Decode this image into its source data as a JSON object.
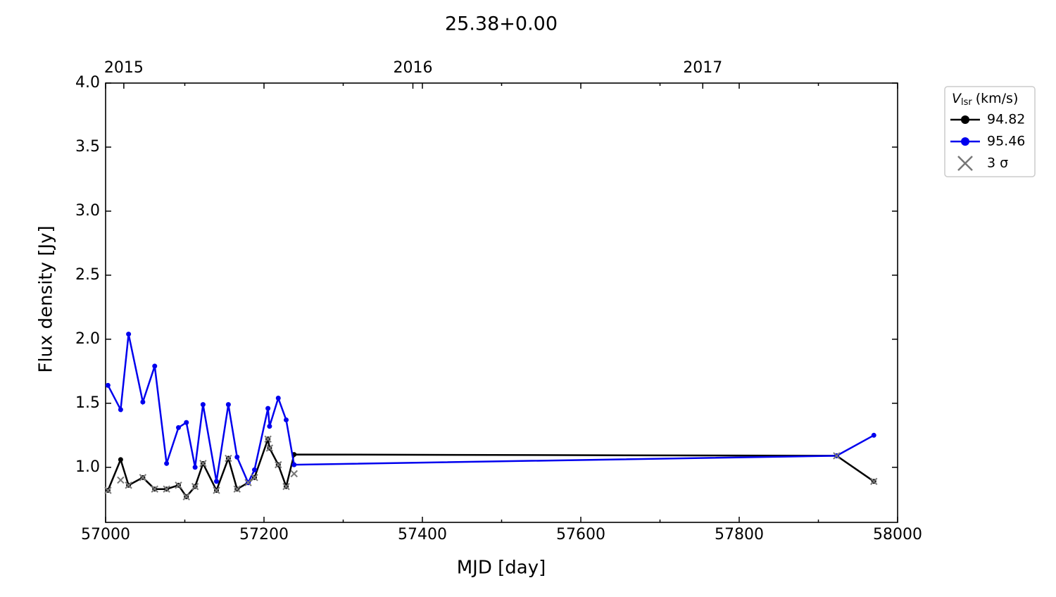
{
  "chart_data": {
    "type": "line",
    "title": "25.38+0.00",
    "xlabel": "MJD [day]",
    "ylabel": "Flux density [Jy]",
    "xlim": [
      57000,
      58000
    ],
    "xticks": [
      57000,
      57200,
      57400,
      57600,
      57800,
      58000
    ],
    "x_minor_ticks": [
      57100,
      57300,
      57500,
      57700,
      57900
    ],
    "x2ticks": [
      {
        "value": 57023,
        "label": "2015"
      },
      {
        "value": 57388,
        "label": "2016"
      },
      {
        "value": 57754,
        "label": "2017"
      }
    ],
    "ylim": [
      0.57,
      4.0
    ],
    "yticks": [
      {
        "value": 1.0,
        "label": "1.0"
      },
      1.5,
      {
        "value": 2.0,
        "label": "2.0"
      },
      2.5,
      {
        "value": 3.0,
        "label": "3.0"
      },
      3.5,
      {
        "value": 4.0,
        "label": "4.0"
      }
    ],
    "legend_title": {
      "symbol": "V",
      "subscript": "lsr",
      "unit": "(km/s)"
    },
    "legend": "outside-upper-right",
    "series": [
      {
        "name": "94.82",
        "color": "#000000",
        "marker": "circle",
        "x": [
          57003,
          57019,
          57029,
          57047,
          57062,
          57077,
          57092,
          57102,
          57113,
          57123,
          57140,
          57155,
          57166,
          57180,
          57188,
          57205,
          57207,
          57218,
          57228,
          57238,
          57923,
          57970
        ],
        "values": [
          0.82,
          1.06,
          0.86,
          0.92,
          0.83,
          0.83,
          0.86,
          0.77,
          0.85,
          1.03,
          0.82,
          1.07,
          0.83,
          0.88,
          0.92,
          1.22,
          1.15,
          1.02,
          0.85,
          1.1,
          1.09,
          0.89
        ]
      },
      {
        "name": "95.46",
        "color": "#0000ee",
        "marker": "circle",
        "x": [
          57003,
          57019,
          57029,
          57047,
          57062,
          57077,
          57092,
          57102,
          57113,
          57123,
          57140,
          57155,
          57166,
          57180,
          57188,
          57205,
          57207,
          57218,
          57228,
          57238,
          57923,
          57970
        ],
        "values": [
          1.64,
          1.45,
          2.04,
          1.51,
          1.79,
          1.03,
          1.31,
          1.35,
          1.0,
          1.49,
          0.89,
          1.49,
          1.08,
          0.88,
          0.98,
          1.46,
          1.32,
          1.54,
          1.37,
          1.02,
          1.09,
          1.25
        ]
      },
      {
        "name": "3 σ",
        "color": "#777777",
        "marker": "x",
        "x": [
          57003,
          57019,
          57029,
          57047,
          57062,
          57077,
          57092,
          57102,
          57113,
          57123,
          57140,
          57155,
          57166,
          57180,
          57188,
          57205,
          57207,
          57218,
          57228,
          57238,
          57923,
          57970
        ],
        "values": [
          0.82,
          0.9,
          0.86,
          0.92,
          0.83,
          0.83,
          0.86,
          0.77,
          0.85,
          1.03,
          0.82,
          1.07,
          0.83,
          0.88,
          0.92,
          1.22,
          1.15,
          1.02,
          0.85,
          0.95,
          1.09,
          0.89
        ]
      }
    ]
  }
}
